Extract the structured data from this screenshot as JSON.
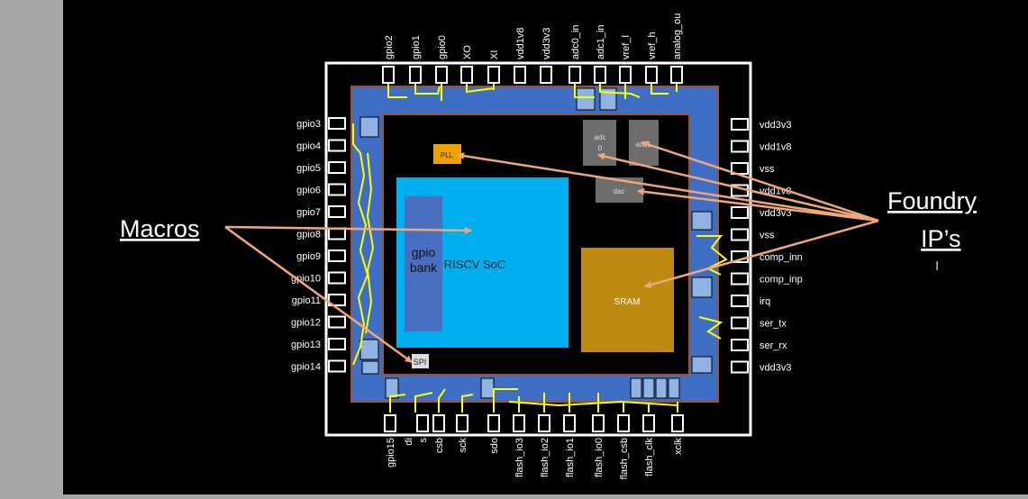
{
  "colors": {
    "background": "#000000",
    "side_panel": "#a8a8a8",
    "pad_ring": "#3f6fc4",
    "pad_ring_border": "#a0522d",
    "soc": "#00aeef",
    "gpio_bank": "#4a6fc0",
    "sram": "#bf8a10",
    "foundry_ip": "#6d6d6d",
    "pll": "#f0a000",
    "arrow": "#f0a878",
    "wire": "#ffff00",
    "text": "#ffffff"
  },
  "pins": {
    "top": [
      "gpio2",
      "gpio1",
      "gpio0",
      "XO",
      "XI",
      "vdd1v8",
      "vdd3v3",
      "adc0_in",
      "adc1_in",
      "vref_l",
      "vref_h",
      "analog_ou"
    ],
    "left": [
      "gpio3",
      "gpio4",
      "gpio5",
      "gpio6",
      "gpio7",
      "gpio8",
      "gpio9",
      "gpio10",
      "gpio11",
      "gpio12",
      "gpio13",
      "gpio14"
    ],
    "right": [
      "vdd3v3",
      "vdd1v8",
      "vss",
      "vdd1v8",
      "vdd3v3",
      "vss",
      "comp_inn",
      "comp_inp",
      "irq",
      "ser_tx",
      "ser_rx",
      "vdd3v3"
    ],
    "bottom": [
      "gpio15",
      "di",
      "s",
      "csb",
      "sck",
      "sdo",
      "flash_io3",
      "flash_io2",
      "flash_io1",
      "flash_io0",
      "flash_csb",
      "flash_clk",
      "xclk"
    ]
  },
  "blocks": {
    "soc": "RISCV SoC",
    "gpio_bank_line1": "gpio",
    "gpio_bank_line2": "bank",
    "sram": "SRAM",
    "adc0_line1": "adc",
    "adc0_line2": "0",
    "adc1": "adc1",
    "dac": "dac",
    "pll": "PLL",
    "spi": "SPI"
  },
  "callouts": {
    "macros": "Macros",
    "foundry_line1": "Foundry",
    "foundry_line2": "IP’s"
  }
}
